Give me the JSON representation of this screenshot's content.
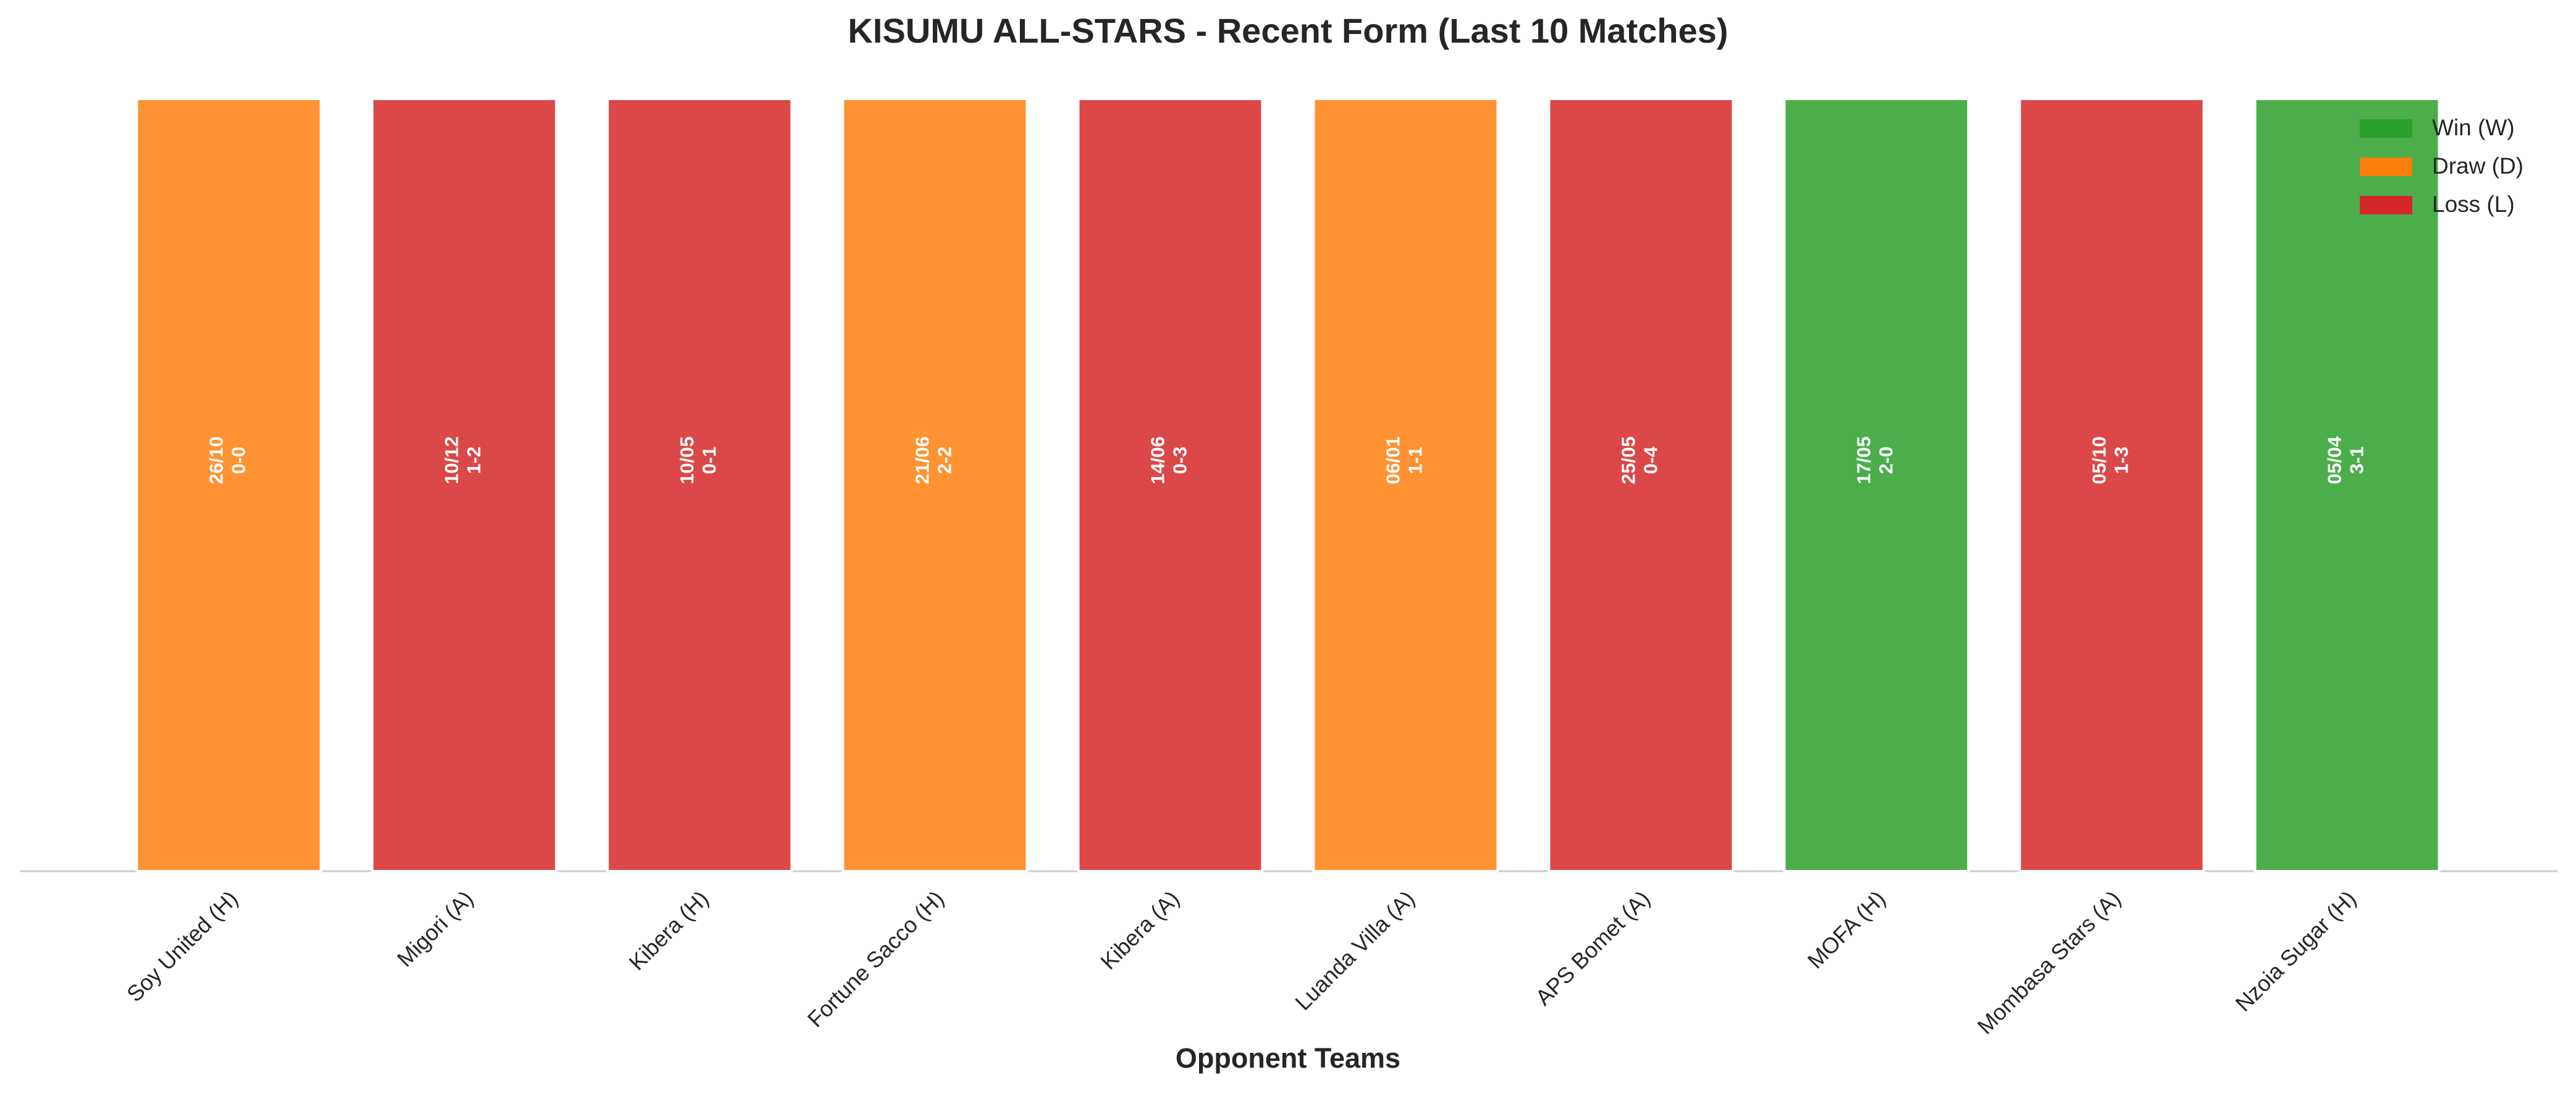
{
  "chart_data": {
    "type": "bar",
    "title": "KISUMU ALL-STARS - Recent Form (Last 10 Matches)",
    "xlabel": "Opponent Teams",
    "categories": [
      "Soy United (H)",
      "Migori (A)",
      "Kibera (H)",
      "Fortune Sacco (H)",
      "Kibera (A)",
      "Luanda Villa (A)",
      "APS Bomet (A)",
      "MOFA (H)",
      "Mombasa Stars (A)",
      "Nzoia Sugar (H)"
    ],
    "values": [
      1,
      1,
      1,
      1,
      1,
      1,
      1,
      1,
      1,
      1
    ],
    "ylim": [
      0,
      1
    ],
    "dates": [
      "26/10",
      "10/12",
      "10/05",
      "21/06",
      "14/06",
      "06/01",
      "25/05",
      "17/05",
      "05/10",
      "05/04"
    ],
    "scores": [
      "0-0",
      "1-2",
      "0-1",
      "2-2",
      "0-3",
      "1-1",
      "0-4",
      "2-0",
      "1-3",
      "3-1"
    ],
    "colors": [
      "#ff7f0e",
      "#d62728",
      "#d62728",
      "#ff7f0e",
      "#d62728",
      "#ff7f0e",
      "#d62728",
      "#2ca02c",
      "#d62728",
      "#2ca02c"
    ],
    "legend": [
      {
        "name": "Win (W)",
        "color": "#2ca02c"
      },
      {
        "name": "Draw (D)",
        "color": "#ff7f0e"
      },
      {
        "name": "Loss (L)",
        "color": "#d62728"
      }
    ],
    "legend_position": "upper right"
  }
}
